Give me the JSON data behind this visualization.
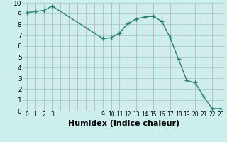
{
  "x": [
    0,
    1,
    2,
    3,
    9,
    10,
    11,
    12,
    13,
    14,
    15,
    16,
    17,
    18,
    19,
    20,
    21,
    22,
    23
  ],
  "y": [
    9.1,
    9.2,
    9.3,
    9.7,
    6.7,
    6.75,
    7.2,
    8.1,
    8.5,
    8.7,
    8.75,
    8.3,
    6.8,
    4.8,
    2.8,
    2.6,
    1.3,
    0.2,
    0.2
  ],
  "line_color": "#2e7d6e",
  "bg_color": "#cceeed",
  "grid_color_v": "#d4a0a0",
  "grid_color_h": "#a0c8c4",
  "xlabel": "Humidex (Indice chaleur)",
  "xlim": [
    -0.5,
    23.5
  ],
  "ylim": [
    0,
    10
  ],
  "xticks": [
    0,
    1,
    2,
    3,
    9,
    10,
    11,
    12,
    13,
    14,
    15,
    16,
    17,
    18,
    19,
    20,
    21,
    22,
    23
  ],
  "yticks": [
    0,
    1,
    2,
    3,
    4,
    5,
    6,
    7,
    8,
    9,
    10
  ],
  "all_x_grid": [
    0,
    1,
    2,
    3,
    4,
    5,
    6,
    7,
    8,
    9,
    10,
    11,
    12,
    13,
    14,
    15,
    16,
    17,
    18,
    19,
    20,
    21,
    22,
    23
  ],
  "marker": "+",
  "markersize": 4,
  "linewidth": 1.0,
  "xlabel_fontsize": 8,
  "tick_fontsize": 6.5
}
